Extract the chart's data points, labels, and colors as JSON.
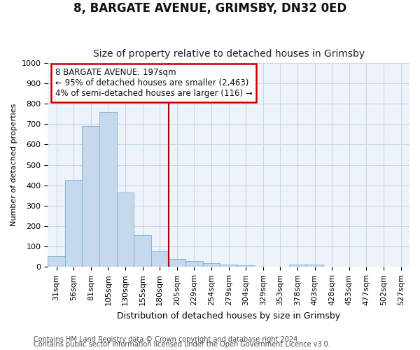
{
  "title1": "8, BARGATE AVENUE, GRIMSBY, DN32 0ED",
  "title2": "Size of property relative to detached houses in Grimsby",
  "xlabel": "Distribution of detached houses by size in Grimsby",
  "ylabel": "Number of detached properties",
  "categories": [
    "31sqm",
    "56sqm",
    "81sqm",
    "105sqm",
    "130sqm",
    "155sqm",
    "180sqm",
    "205sqm",
    "229sqm",
    "254sqm",
    "279sqm",
    "304sqm",
    "329sqm",
    "353sqm",
    "378sqm",
    "403sqm",
    "428sqm",
    "453sqm",
    "477sqm",
    "502sqm",
    "527sqm"
  ],
  "values": [
    52,
    425,
    690,
    760,
    365,
    155,
    75,
    40,
    28,
    18,
    10,
    8,
    0,
    0,
    10,
    10,
    0,
    0,
    0,
    0,
    0
  ],
  "bar_color": "#c5d8ec",
  "bar_edge_color": "#7aafd4",
  "grid_color": "#c8d8ea",
  "background_color": "#eef3fa",
  "vline_x_index": 7,
  "vline_color": "#aa0000",
  "annotation_text": "8 BARGATE AVENUE: 197sqm\n← 95% of detached houses are smaller (2,463)\n4% of semi-detached houses are larger (116) →",
  "annotation_box_color": "#ffffff",
  "annotation_box_edge": "#cc0000",
  "ylim": [
    0,
    1000
  ],
  "yticks": [
    0,
    100,
    200,
    300,
    400,
    500,
    600,
    700,
    800,
    900,
    1000
  ],
  "footer1": "Contains HM Land Registry data © Crown copyright and database right 2024.",
  "footer2": "Contains public sector information licensed under the Open Government Licence v3.0.",
  "title1_fontsize": 12,
  "title2_fontsize": 10,
  "xlabel_fontsize": 9,
  "ylabel_fontsize": 8,
  "tick_fontsize": 8,
  "footer_fontsize": 7
}
